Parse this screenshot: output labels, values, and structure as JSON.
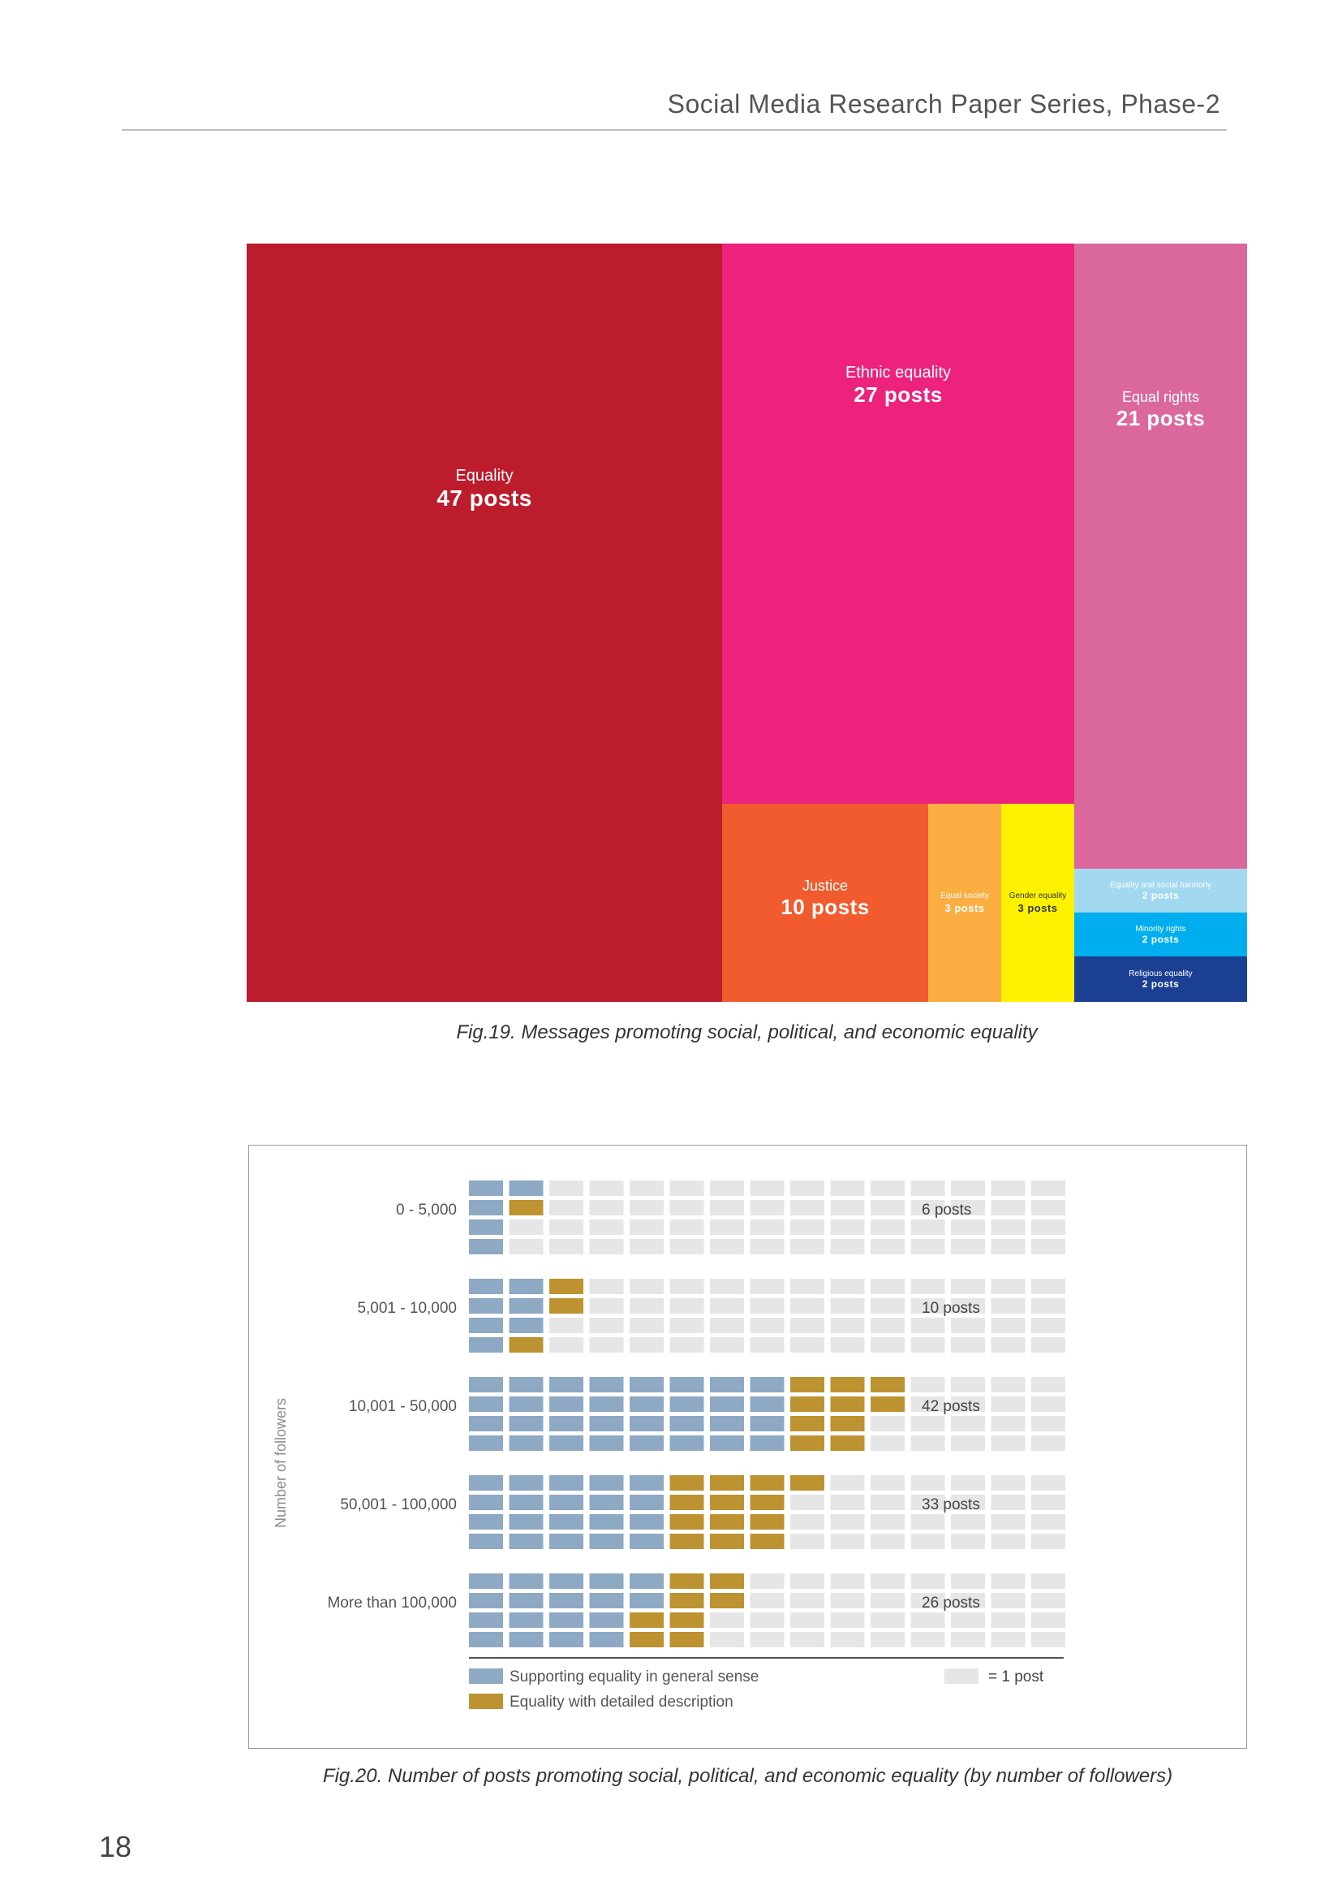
{
  "header": {
    "title": "Social Media Research Paper Series, Phase-2"
  },
  "page": {
    "number": "18"
  },
  "colors": {
    "equality": "#bd1c2d",
    "ethnic_equality": "#ec227c",
    "equal_rights": "#db689c",
    "justice": "#f15b2d",
    "equal_society": "#fbae42",
    "gender_equality": "#fff200",
    "equality_social_harmony": "#a3d8f1",
    "minority_rights": "#00aeef",
    "religious_equality": "#1b3f93",
    "general_sense": "#8da9c4",
    "detailed_description": "#bc9330",
    "empty_post": "#e6e6e6"
  },
  "chart_data": [
    {
      "type": "treemap",
      "caption": "Fig.19. Messages promoting social, political, and economic equality",
      "unit": "posts",
      "items": [
        {
          "label": "Equality",
          "value": 47,
          "value_label": "47 posts"
        },
        {
          "label": "Ethnic equality",
          "value": 27,
          "value_label": "27 posts"
        },
        {
          "label": "Equal rights",
          "value": 21,
          "value_label": "21 posts"
        },
        {
          "label": "Justice",
          "value": 10,
          "value_label": "10 posts"
        },
        {
          "label": "Equal society",
          "value": 3,
          "value_label": "3 posts"
        },
        {
          "label": "Gender equality",
          "value": 3,
          "value_label": "3 posts"
        },
        {
          "label": "Equality and social harmony",
          "value": 2,
          "value_label": "2 posts"
        },
        {
          "label": "Minority rights",
          "value": 2,
          "value_label": "2 posts"
        },
        {
          "label": "Religious equality",
          "value": 2,
          "value_label": "2 posts"
        }
      ]
    },
    {
      "type": "waffle",
      "caption": "Fig.20. Number of posts promoting social, political, and economic equality (by number of followers)",
      "ylabel": "Number of followers",
      "grid": {
        "columns": 15,
        "rows_per_column": 4
      },
      "series": [
        {
          "name": "Supporting equality in general sense"
        },
        {
          "name": "Equality with detailed description"
        }
      ],
      "legend_unit": "= 1 post",
      "categories": [
        "0 - 5,000",
        "5,001 - 10,000",
        "10,001 - 50,000",
        "50,001 - 100,000",
        "More than 100,000"
      ],
      "general": [
        5,
        7,
        32,
        20,
        18
      ],
      "detailed": [
        1,
        3,
        10,
        13,
        8
      ],
      "totals": [
        6,
        10,
        42,
        33,
        26
      ],
      "total_labels": [
        "6 posts",
        "10 posts",
        "42 posts",
        "33 posts",
        "26 posts"
      ]
    }
  ]
}
